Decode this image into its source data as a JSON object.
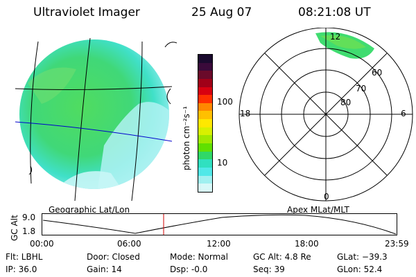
{
  "header": {
    "title": "Ultraviolet Imager",
    "date": "25 Aug 07",
    "time": "08:21:08 UT"
  },
  "colorbar": {
    "unit_label": "photon cm⁻²s⁻¹",
    "ticks": [
      "100",
      "10"
    ],
    "colors": [
      "#1a0a2e",
      "#3a0a3a",
      "#6a0a2a",
      "#a00018",
      "#d80010",
      "#ff3000",
      "#ff8800",
      "#ffc000",
      "#ffe800",
      "#d8f000",
      "#a0e800",
      "#60e000",
      "#30d868",
      "#30e0c0",
      "#50e8e8",
      "#a0f0f0",
      "#d8f8f8"
    ]
  },
  "left_panel": {
    "label": "Geographic Lat/Lon"
  },
  "right_panel": {
    "label": "Apex MLat/MLT",
    "mlt_labels": {
      "top": "12",
      "left": "18",
      "right": "6",
      "bottom": "0"
    },
    "lat_labels": [
      "60",
      "70",
      "80"
    ]
  },
  "altitude_plot": {
    "ylabel": "GC Alt",
    "yticks": [
      "9.0",
      "1.8"
    ],
    "xticks": [
      "00:00",
      "06:00",
      "12:00",
      "18:00",
      "23:59"
    ],
    "marker_color": "#d00000"
  },
  "status": {
    "flt": "Flt: LBHL",
    "ip": "IP: 36.0",
    "door": "Door: Closed",
    "gain": "Gain: 14",
    "mode": "Mode: Normal",
    "dsp": "Dsp:    -0.0",
    "gc_alt": "GC Alt: 4.8 Re",
    "seq": "Seq: 39",
    "glat": "GLat: −39.3",
    "glon": "GLon:  52.4"
  }
}
